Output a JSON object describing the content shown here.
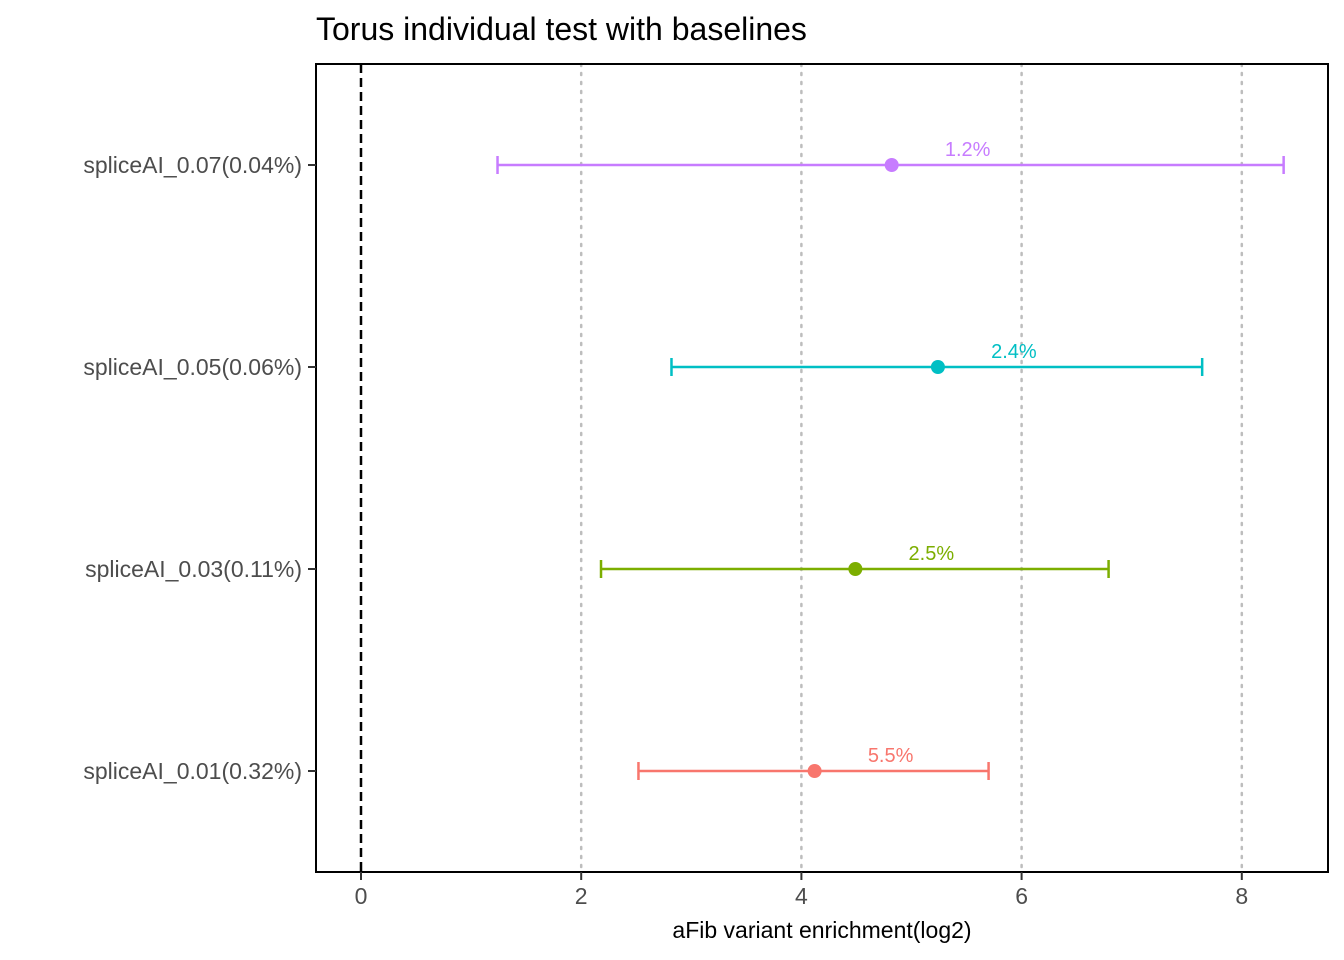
{
  "chart_data": {
    "type": "errorbar",
    "title": "Torus individual test with baselines",
    "xlabel": "aFib variant enrichment(log2)",
    "ylabel": "",
    "xlim": [
      -0.4,
      8.8
    ],
    "x_ticks": [
      0,
      2,
      4,
      6,
      8
    ],
    "x_tick_labels": [
      "0",
      "2",
      "4",
      "6",
      "8"
    ],
    "reference_line": {
      "x": 0,
      "style": "dashed"
    },
    "grid": "vertical dotted",
    "series": [
      {
        "name": "spliceAI_0.01(0.32%)",
        "estimate": 4.12,
        "low": 2.52,
        "high": 5.7,
        "label": "5.5%",
        "color": "#F8766D"
      },
      {
        "name": "spliceAI_0.03(0.11%)",
        "estimate": 4.49,
        "low": 2.18,
        "high": 6.79,
        "label": "2.5%",
        "color": "#7CAE00"
      },
      {
        "name": "spliceAI_0.05(0.06%)",
        "estimate": 5.24,
        "low": 2.82,
        "high": 7.64,
        "label": "2.4%",
        "color": "#00BFC4"
      },
      {
        "name": "spliceAI_0.07(0.04%)",
        "estimate": 4.82,
        "low": 1.24,
        "high": 8.38,
        "label": "1.2%",
        "color": "#C77CFF"
      }
    ]
  }
}
